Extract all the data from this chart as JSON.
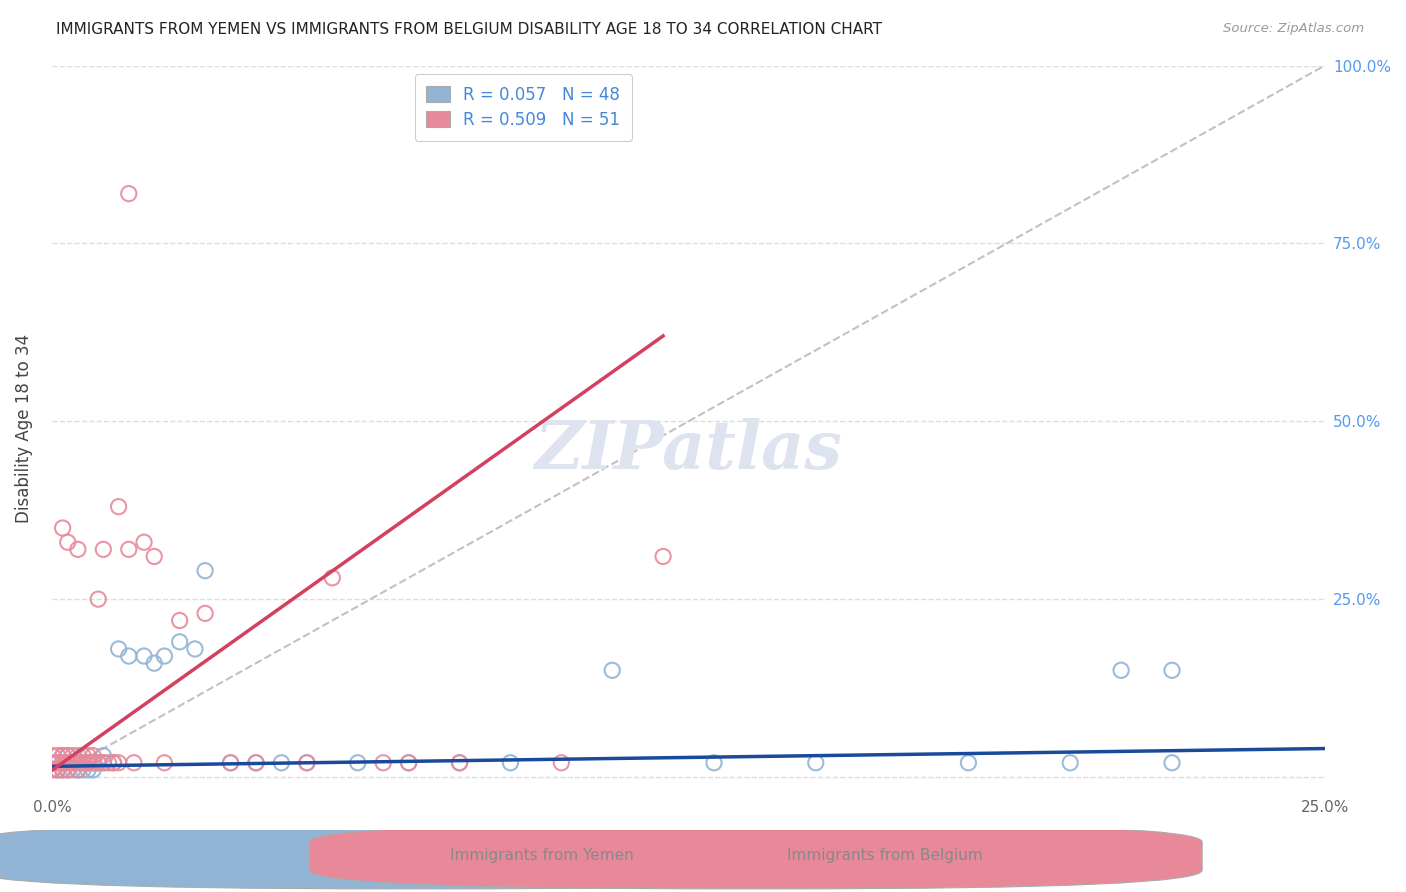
{
  "title": "IMMIGRANTS FROM YEMEN VS IMMIGRANTS FROM BELGIUM DISABILITY AGE 18 TO 34 CORRELATION CHART",
  "source": "Source: ZipAtlas.com",
  "ylabel": "Disability Age 18 to 34",
  "xlim": [
    0.0,
    0.25
  ],
  "ylim": [
    0.0,
    1.0
  ],
  "yemen_color": "#92b4d4",
  "belgium_color": "#e8899a",
  "trendline_yemen_color": "#1a4a9c",
  "trendline_belgium_color": "#d44060",
  "diagonal_color": "#bbbbbb",
  "background_color": "#ffffff",
  "grid_color": "#dddddd",
  "watermark_color": "#dde4f0",
  "right_axis_color": "#5599ee",
  "title_color": "#222222",
  "source_color": "#999999",
  "legend_text_color": "#4488dd",
  "bottom_label_color": "#888888",
  "yemen_r": "0.057",
  "yemen_n": "48",
  "belgium_r": "0.509",
  "belgium_n": "51",
  "yemen_x": [
    0.0,
    0.001,
    0.001,
    0.002,
    0.002,
    0.002,
    0.003,
    0.003,
    0.003,
    0.004,
    0.004,
    0.005,
    0.005,
    0.005,
    0.006,
    0.006,
    0.007,
    0.007,
    0.008,
    0.008,
    0.009,
    0.01,
    0.01,
    0.012,
    0.013,
    0.015,
    0.018,
    0.02,
    0.022,
    0.025,
    0.028,
    0.03,
    0.035,
    0.04,
    0.045,
    0.05,
    0.06,
    0.07,
    0.08,
    0.09,
    0.11,
    0.13,
    0.15,
    0.18,
    0.2,
    0.21,
    0.22,
    0.22
  ],
  "yemen_y": [
    0.02,
    0.01,
    0.02,
    0.01,
    0.02,
    0.03,
    0.01,
    0.02,
    0.03,
    0.01,
    0.02,
    0.01,
    0.02,
    0.03,
    0.01,
    0.02,
    0.01,
    0.02,
    0.01,
    0.02,
    0.02,
    0.02,
    0.03,
    0.02,
    0.18,
    0.17,
    0.17,
    0.16,
    0.17,
    0.19,
    0.18,
    0.29,
    0.02,
    0.02,
    0.02,
    0.02,
    0.02,
    0.02,
    0.02,
    0.02,
    0.15,
    0.02,
    0.02,
    0.02,
    0.02,
    0.15,
    0.02,
    0.15
  ],
  "belgium_x": [
    0.0,
    0.0,
    0.0,
    0.001,
    0.001,
    0.001,
    0.002,
    0.002,
    0.002,
    0.003,
    0.003,
    0.003,
    0.004,
    0.004,
    0.005,
    0.005,
    0.006,
    0.006,
    0.007,
    0.007,
    0.008,
    0.008,
    0.009,
    0.01,
    0.01,
    0.012,
    0.013,
    0.015,
    0.016,
    0.018,
    0.02,
    0.022,
    0.025,
    0.03,
    0.035,
    0.04,
    0.05,
    0.055,
    0.065,
    0.07,
    0.08,
    0.1,
    0.12,
    0.002,
    0.003,
    0.005,
    0.007,
    0.009,
    0.011,
    0.013,
    0.015
  ],
  "belgium_y": [
    0.01,
    0.02,
    0.03,
    0.01,
    0.02,
    0.03,
    0.01,
    0.02,
    0.03,
    0.01,
    0.02,
    0.03,
    0.02,
    0.03,
    0.01,
    0.02,
    0.02,
    0.03,
    0.02,
    0.03,
    0.02,
    0.03,
    0.25,
    0.02,
    0.32,
    0.02,
    0.38,
    0.32,
    0.02,
    0.33,
    0.31,
    0.02,
    0.22,
    0.23,
    0.02,
    0.02,
    0.02,
    0.28,
    0.02,
    0.02,
    0.02,
    0.02,
    0.31,
    0.35,
    0.33,
    0.32,
    0.02,
    0.02,
    0.02,
    0.02,
    0.82
  ]
}
